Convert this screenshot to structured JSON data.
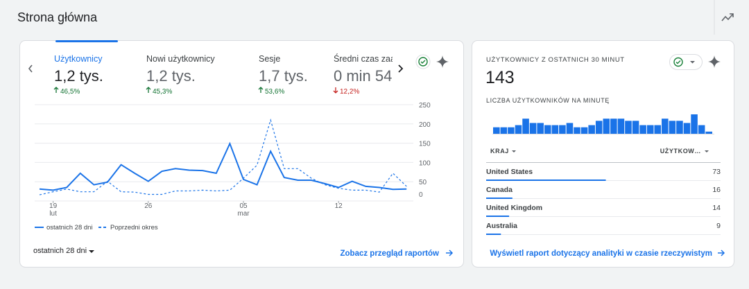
{
  "header": {
    "title": "Strona główna"
  },
  "overview": {
    "metrics": [
      {
        "label": "Użytkownicy",
        "value": "1,2 tys.",
        "change": "46,5%",
        "direction": "up",
        "active": true
      },
      {
        "label": "Nowi użytkownicy",
        "value": "1,2 tys.",
        "change": "45,3%",
        "direction": "up"
      },
      {
        "label": "Sesje",
        "value": "1,7 tys.",
        "change": "53,6%",
        "direction": "up"
      },
      {
        "label": "Średni czas zaa",
        "value": "0 min 54",
        "change": "12,2%",
        "direction": "down"
      }
    ],
    "chart_data": {
      "type": "line",
      "xticks": [
        {
          "value": 1,
          "label": "19",
          "sublabel": "lut"
        },
        {
          "value": 8,
          "label": "26"
        },
        {
          "value": 15,
          "label": "05",
          "sublabel": "mar"
        },
        {
          "value": 22,
          "label": "12"
        }
      ],
      "ylim": [
        0,
        250
      ],
      "yticks": [
        0,
        50,
        100,
        150,
        200,
        250
      ],
      "grid": true,
      "series": [
        {
          "name": "ostatnich 28 dni",
          "color": "#1a73e8",
          "style": "solid",
          "values": [
            31,
            28,
            35,
            72,
            42,
            49,
            94,
            72,
            51,
            77,
            84,
            80,
            79,
            72,
            149,
            56,
            42,
            129,
            61,
            54,
            54,
            45,
            35,
            51,
            38,
            35,
            30,
            31
          ]
        },
        {
          "name": "Poprzedni okres",
          "color": "#1a73e8",
          "style": "dashed",
          "values": [
            16,
            24,
            31,
            24,
            24,
            51,
            24,
            23,
            17,
            17,
            26,
            26,
            28,
            26,
            28,
            59,
            93,
            210,
            84,
            84,
            59,
            42,
            33,
            28,
            28,
            23,
            72,
            38
          ]
        }
      ]
    },
    "date_range": "ostatnich 28 dni",
    "link": "Zobacz przegląd raportów"
  },
  "realtime": {
    "title": "UŻYTKOWNICY Z OSTATNICH 30 MINUT",
    "value": 143,
    "chart_data": {
      "type": "bar",
      "title": "LICZBA UŻYTKOWNIKÓW NA MINUTĘ",
      "color": "#1a73e8",
      "values": [
        3,
        3,
        3,
        4,
        7,
        5,
        5,
        4,
        4,
        4,
        5,
        3,
        3,
        4,
        6,
        7,
        7,
        7,
        6,
        6,
        4,
        4,
        4,
        7,
        6,
        6,
        5,
        9,
        4,
        1
      ]
    },
    "table": {
      "columns": [
        "KRAJ",
        "UŻYTKOW…"
      ],
      "rows": [
        [
          "United States",
          73
        ],
        [
          "Canada",
          16
        ],
        [
          "United Kingdom",
          14
        ],
        [
          "Australia",
          9
        ]
      ]
    },
    "link": "Wyświetl raport dotyczący analityki w czasie rzeczywistym"
  }
}
